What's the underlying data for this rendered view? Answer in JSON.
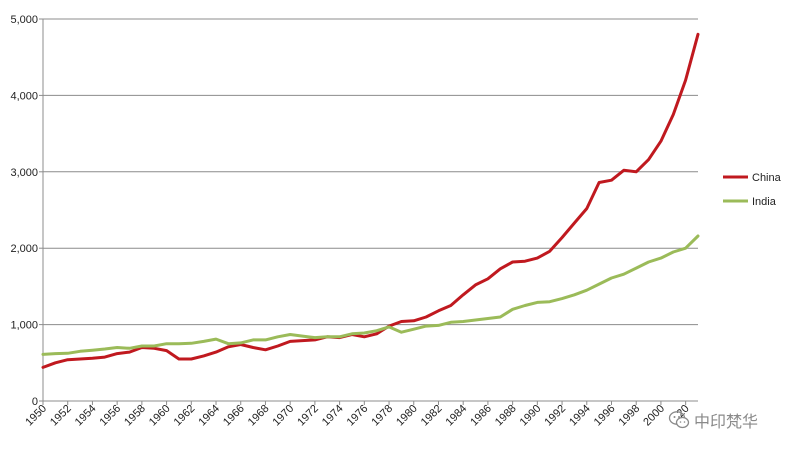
{
  "chart_data": {
    "type": "line",
    "x": [
      1950,
      1951,
      1952,
      1953,
      1954,
      1955,
      1956,
      1957,
      1958,
      1959,
      1960,
      1961,
      1962,
      1963,
      1964,
      1965,
      1966,
      1967,
      1968,
      1969,
      1970,
      1971,
      1972,
      1973,
      1974,
      1975,
      1976,
      1977,
      1978,
      1979,
      1980,
      1981,
      1982,
      1983,
      1984,
      1985,
      1986,
      1987,
      1988,
      1989,
      1990,
      1991,
      1992,
      1993,
      1994,
      1995,
      1996,
      1997,
      1998,
      1999,
      2000,
      2001,
      2002,
      2003
    ],
    "x_tick_labels": [
      "1950",
      "1952",
      "1954",
      "1956",
      "1958",
      "1960",
      "1962",
      "1964",
      "1966",
      "1968",
      "1970",
      "1972",
      "1974",
      "1976",
      "1978",
      "1980",
      "1982",
      "1984",
      "1986",
      "1988",
      "1990",
      "1992",
      "1994",
      "1996",
      "1998",
      "2000",
      "20"
    ],
    "series": [
      {
        "name": "China",
        "color": "#c0191f",
        "values": [
          440,
          500,
          540,
          550,
          560,
          575,
          620,
          640,
          700,
          690,
          660,
          550,
          550,
          590,
          640,
          710,
          740,
          700,
          670,
          720,
          780,
          790,
          800,
          840,
          830,
          870,
          840,
          880,
          980,
          1040,
          1050,
          1100,
          1180,
          1250,
          1390,
          1520,
          1600,
          1730,
          1820,
          1830,
          1870,
          1960,
          2140,
          2330,
          2520,
          2860,
          2890,
          3020,
          3000,
          3160,
          3400,
          3750,
          4200,
          4800
        ]
      },
      {
        "name": "India",
        "color": "#9bbb59",
        "values": [
          610,
          620,
          625,
          650,
          665,
          680,
          700,
          690,
          720,
          720,
          750,
          750,
          755,
          780,
          810,
          750,
          760,
          800,
          800,
          840,
          870,
          850,
          830,
          840,
          840,
          880,
          890,
          920,
          970,
          900,
          940,
          980,
          990,
          1030,
          1040,
          1060,
          1080,
          1100,
          1200,
          1250,
          1290,
          1300,
          1340,
          1390,
          1450,
          1530,
          1610,
          1660,
          1740,
          1820,
          1870,
          1950,
          2000,
          2160
        ]
      }
    ],
    "y_ticks": [
      0,
      1000,
      2000,
      3000,
      4000,
      5000
    ],
    "y_tick_labels": [
      "0",
      "1,000",
      "2,000",
      "3,000",
      "4,000",
      "5,000"
    ],
    "ylim": [
      0,
      5000
    ],
    "xlim": [
      1950,
      2003
    ],
    "grid": true,
    "legend": "right"
  },
  "legend": {
    "china": "China",
    "india": "India"
  },
  "watermark": {
    "text": "中印梵华",
    "icon": "wechat-icon"
  }
}
